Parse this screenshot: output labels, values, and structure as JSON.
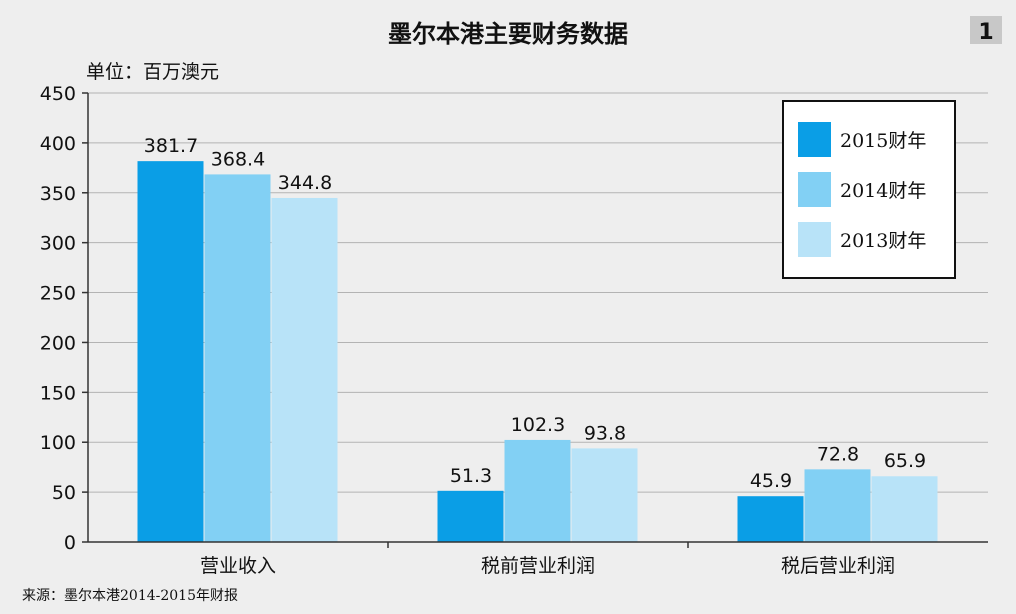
{
  "chart_data": {
    "type": "bar",
    "title": "墨尔本港主要财务数据",
    "badge": "1",
    "unit_label": "单位：百万澳元",
    "categories": [
      "营业收入",
      "税前营业利润",
      "税后营业利润"
    ],
    "series": [
      {
        "name": "2015财年",
        "values": [
          381.7,
          51.3,
          45.9
        ],
        "color": "#0a9ee6"
      },
      {
        "name": "2014财年",
        "values": [
          368.4,
          102.3,
          72.8
        ],
        "color": "#82d0f4"
      },
      {
        "name": "2013财年",
        "values": [
          344.8,
          93.8,
          65.9
        ],
        "color": "#b8e3f8"
      }
    ],
    "yticks": [
      0,
      50,
      100,
      150,
      200,
      250,
      300,
      350,
      400,
      450
    ],
    "ylim": [
      0,
      450
    ],
    "grid": true,
    "legend_position": "top-right",
    "source": "来源：墨尔本港2014-2015年财报"
  }
}
